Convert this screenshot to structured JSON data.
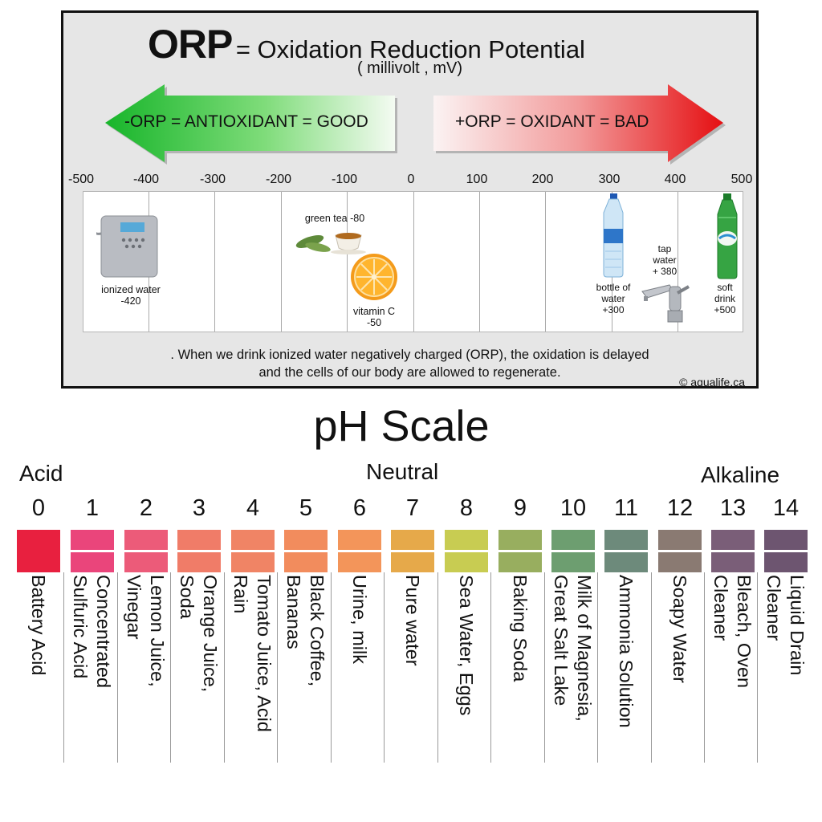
{
  "orp": {
    "title_bold": "ORP",
    "title_rest": "= Oxidation Reduction Potential",
    "subtitle": "( millivolt , mV)",
    "left_arrow": "-ORP = ANTIOXIDANT = GOOD",
    "right_arrow": "+ORP = OXIDANT = BAD",
    "ticks": [
      "-500",
      "-400",
      "-300",
      "-200",
      "-100",
      "0",
      "100",
      "200",
      "300",
      "400",
      "500"
    ],
    "items": {
      "ionized_water": {
        "name": "ionized water",
        "value": "-420"
      },
      "green_tea": {
        "label": "green tea -80"
      },
      "vitamin_c": {
        "name": "vitamin C",
        "value": "-50"
      },
      "bottle_water": {
        "name1": "bottle of",
        "name2": "water",
        "value": "+300"
      },
      "tap_water": {
        "name1": "tap",
        "name2": "water",
        "value": "+ 380"
      },
      "soft_drink": {
        "name1": "soft",
        "name2": "drink",
        "value": "+500"
      }
    },
    "note_line1": ". When we drink ionized water negatively charged (ORP),  the oxidation is delayed",
    "note_line2": "and the cells of our body are allowed to regenerate.",
    "copyright": "© aqualife.ca"
  },
  "ph": {
    "title": "pH Scale",
    "acid": "Acid",
    "neutral": "Neutral",
    "alkaline": "Alkaline",
    "levels": [
      {
        "num": "0",
        "color": "#e8203f",
        "l1": "Battery Acid",
        "l2": ""
      },
      {
        "num": "1",
        "color": "#ea457b",
        "l1": "Concentrated",
        "l2": "Sulfuric Acid"
      },
      {
        "num": "2",
        "color": "#ec5b79",
        "l1": "Lemon Juice,",
        "l2": "Vinegar"
      },
      {
        "num": "3",
        "color": "#f07c68",
        "l1": "Orange Juice,",
        "l2": "Soda"
      },
      {
        "num": "4",
        "color": "#f08465",
        "l1": "Tomato Juice, Acid",
        "l2": "Rain"
      },
      {
        "num": "5",
        "color": "#f28c5d",
        "l1": "Black Coffee,",
        "l2": "Bananas"
      },
      {
        "num": "6",
        "color": "#f3955a",
        "l1": "Urine, milk",
        "l2": ""
      },
      {
        "num": "7",
        "color": "#e6a94a",
        "l1": "Pure water",
        "l2": ""
      },
      {
        "num": "8",
        "color": "#c8cc52",
        "l1": "Sea Water, Eggs",
        "l2": ""
      },
      {
        "num": "9",
        "color": "#98ae5f",
        "l1": "Baking Soda",
        "l2": ""
      },
      {
        "num": "10",
        "color": "#6d9e70",
        "l1": "Milk of Magnesia,",
        "l2": "Great Salt Lake"
      },
      {
        "num": "11",
        "color": "#6d8a7b",
        "l1": "Ammonia Solution",
        "l2": ""
      },
      {
        "num": "12",
        "color": "#8a7a72",
        "l1": "Soapy Water",
        "l2": ""
      },
      {
        "num": "13",
        "color": "#7a5e78",
        "l1": "Bleach, Oven",
        "l2": "Cleaner"
      },
      {
        "num": "14",
        "color": "#6d5570",
        "l1": "Liquid Drain",
        "l2": "Cleaner"
      }
    ]
  }
}
